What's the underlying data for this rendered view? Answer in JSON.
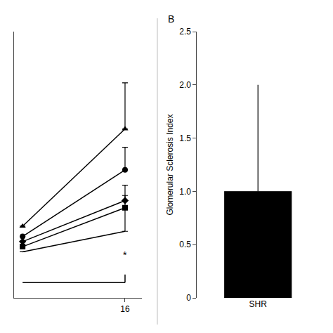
{
  "chart_data": [
    {
      "type": "line",
      "x": [
        4,
        16
      ],
      "series": [
        {
          "values": [
            1.1,
            2.05
          ],
          "error_up": [
            null,
            0.45
          ],
          "error_down": [
            null,
            0.0
          ],
          "marker": "triangle-up",
          "color": "#000000"
        },
        {
          "values": [
            1.0,
            1.65
          ],
          "error_up": [
            null,
            0.22
          ],
          "error_down": [
            null,
            0.0
          ],
          "marker": "circle",
          "color": "#000000"
        },
        {
          "values": [
            0.95,
            1.35
          ],
          "error_up": [
            null,
            0.15
          ],
          "error_down": [
            null,
            0.0
          ],
          "marker": "diamond",
          "color": "#000000"
        },
        {
          "values": [
            0.9,
            1.28
          ],
          "error_up": [
            null,
            0.12
          ],
          "error_down": [
            null,
            0.0
          ],
          "marker": "square",
          "color": "#000000"
        },
        {
          "values": [
            0.85,
            1.05
          ],
          "error_up": [
            null,
            0.22
          ],
          "error_down": [
            null,
            0.0
          ],
          "marker": "none",
          "color": "#000000"
        }
      ],
      "annotations": [
        {
          "text": "*",
          "x": 16,
          "y": 0.82
        }
      ],
      "brackets": [
        {
          "x1": 4,
          "x2": 16,
          "y": 0.55
        }
      ],
      "xlim": [
        3,
        18
      ],
      "xticks": [
        16
      ],
      "ylim": [
        0.4,
        3.0
      ],
      "tick_labels": "x",
      "grid": false,
      "legend": false
    },
    {
      "type": "bar",
      "title": "B",
      "categories": [
        "SHR"
      ],
      "values": [
        1.0
      ],
      "error_up": [
        1.0
      ],
      "error_down": [
        0.0
      ],
      "color": "#000000",
      "ylabel": "Glomerular Sclerosis Index",
      "ylim": [
        0,
        2.5
      ],
      "yticks": [
        0,
        0.5,
        {
          "value": 1.0,
          "label": "1.0"
        },
        1.5,
        {
          "value": 2.0,
          "label": "2.0"
        },
        2.5
      ],
      "grid": false,
      "legend": false
    }
  ]
}
